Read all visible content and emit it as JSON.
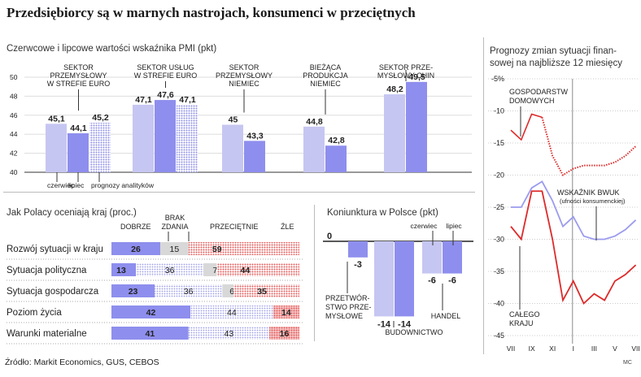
{
  "title": "Przedsiębiorcy są w marnych nastrojach, konsumenci w przeciętnych",
  "source": "Źródło: Markit Economics, GUS, CEBOS",
  "credit": "MC",
  "colors": {
    "czerwiec": "#c6c6f2",
    "lipiec": "#8e8eee",
    "prognozy": "#b8b8f5",
    "dobrze": "#8e8eee",
    "brak": "#d8d8d8",
    "przecietnie": "#ddddf7",
    "zle": "#ee8a8a",
    "red_line": "#dd2a2a",
    "blue_line": "#9b9bee"
  },
  "chart_data": [
    {
      "id": "pmi",
      "type": "bar",
      "title": "Czerwcowe i lipcowe wartości wskaźnika PMI (pkt)",
      "ylim": [
        40,
        50
      ],
      "yticks": [
        "40",
        "42",
        "44",
        "46",
        "48",
        "50"
      ],
      "groups": [
        {
          "label": "SEKTOR PRZEMYSŁOWY W STREFIE EURO",
          "label_lines": [
            "SEKTOR",
            "PRZEMYSŁOWY",
            "W STREFIE EURO"
          ],
          "czerwiec": 45.1,
          "lipiec": 44.1,
          "prognozy": 45.2,
          "labels": [
            "45,1",
            "44,1",
            "45,2"
          ]
        },
        {
          "label": "SEKTOR USŁUG W STREFIE EURO",
          "label_lines": [
            "SEKTOR USŁUG",
            "W STREFIE EURO"
          ],
          "czerwiec": 47.1,
          "lipiec": 47.6,
          "prognozy": 47.1,
          "labels": [
            "47,1",
            "47,6",
            "47,1"
          ]
        },
        {
          "label": "SEKTOR PRZEMYSŁOWY NIEMIEC",
          "label_lines": [
            "SEKTOR",
            "PRZEMYSŁOWY",
            "NIEMIEC"
          ],
          "czerwiec": 45,
          "lipiec": 43.3,
          "labels": [
            "45",
            "43,3"
          ]
        },
        {
          "label": "BIEŻĄCA PRODUKCJA NIEMIEC",
          "label_lines": [
            "BIEŻĄCA",
            "PRODUKCJA",
            "NIEMIEC"
          ],
          "czerwiec": 44.8,
          "lipiec": 42.8,
          "labels": [
            "44,8",
            "42,8"
          ]
        },
        {
          "label": "SEKTOR PRZEMYSŁOWY CHIN",
          "label_lines": [
            "SEKTOR PRZE-",
            "MYSŁOWY CHIN"
          ],
          "czerwiec": 48.2,
          "lipiec": 49.5,
          "labels": [
            "48,2",
            "49,5"
          ]
        }
      ],
      "legend": [
        "czerwiec",
        "lipiec",
        "prognozy analityków"
      ]
    },
    {
      "id": "oceny",
      "type": "bar",
      "stacked": true,
      "orientation": "horizontal",
      "title": "Jak Polacy oceniają kraj (proc.)",
      "categories_header": [
        "DOBRZE",
        "BRAK ZDANIA",
        "PRZECIĘTNIE",
        "ŹLE"
      ],
      "rows": [
        {
          "label": "Rozwój sytuacji w kraju",
          "dobrze": 26,
          "brak": 15,
          "przecietnie": 0,
          "zle": 59,
          "labels": [
            "26",
            "15",
            "",
            "59"
          ]
        },
        {
          "label": "Sytuacja polityczna",
          "dobrze": 13,
          "brak": 0,
          "przecietnie": 36,
          "brak2": 7,
          "zle": 44,
          "labels": [
            "13",
            "36",
            "7",
            "44"
          ]
        },
        {
          "label": "Sytuacja gospodarcza",
          "dobrze": 23,
          "brak": 0,
          "przecietnie": 36,
          "brak2": 6,
          "zle": 35,
          "labels": [
            "23",
            "36",
            "6",
            "35"
          ]
        },
        {
          "label": "Poziom życia",
          "dobrze": 42,
          "brak": 0,
          "przecietnie": 44,
          "zle": 14,
          "labels": [
            "42",
            "",
            "44",
            "14"
          ]
        },
        {
          "label": "Warunki materialne",
          "dobrze": 41,
          "brak": 0,
          "przecietnie": 43,
          "zle": 16,
          "labels": [
            "41",
            "",
            "43",
            "16"
          ]
        }
      ]
    },
    {
      "id": "koniunktura",
      "type": "bar",
      "title": "Koniunktura w Polsce (pkt)",
      "ylim": [
        -16,
        0
      ],
      "legend": [
        "czerwiec",
        "lipiec"
      ],
      "groups": [
        {
          "label": "PRZETWÓRSTWO PRZEMYSŁOWE",
          "label_lines": [
            "PRZETWÓR-",
            "STWO PRZE-",
            "MYSŁOWE"
          ],
          "czerwiec": 0,
          "lipiec": -3,
          "labels": [
            "0",
            "-3"
          ]
        },
        {
          "label": "BUDOWNICTWO",
          "label_lines": [
            "BUDOWNICTWO"
          ],
          "czerwiec": -14,
          "lipiec": -14,
          "labels": [
            "-14",
            "-14"
          ]
        },
        {
          "label": "HANDEL",
          "label_lines": [
            "HANDEL"
          ],
          "czerwiec": -6,
          "lipiec": -6,
          "labels": [
            "-6",
            "-6"
          ]
        }
      ]
    },
    {
      "id": "prognozy",
      "type": "line",
      "title": "Prognozy zmian sytuacji finansowej na najbliższe 12 miesięcy",
      "title_lines": [
        "Prognozy zmian sytuacji finan-",
        "sowej na najbliższe 12 miesięcy"
      ],
      "ylim": [
        -45,
        -5
      ],
      "yticks": [
        "-5%",
        "-10",
        "-15",
        "-20",
        "-25",
        "-30",
        "-35",
        "-40",
        "-45"
      ],
      "xticks": [
        "VII",
        "IX",
        "XI",
        "I",
        "III",
        "V",
        "VII"
      ],
      "x": [
        "VII",
        "VIII",
        "IX",
        "X",
        "XI",
        "XII",
        "I",
        "II",
        "III",
        "IV",
        "V",
        "VI",
        "VII"
      ],
      "series": [
        {
          "name": "GOSPODARSTW DOMOWYCH",
          "color": "red",
          "values": [
            -13,
            -14.5,
            -10.5,
            -11,
            -17,
            -20,
            -19,
            -18.5,
            -18.5,
            -18.5,
            -18,
            -17,
            -15.5
          ],
          "dotted_from": 3
        },
        {
          "name": "WSKAŹNIK BWUK",
          "subname": "(ufności konsumenckiej)",
          "color": "blue",
          "values": [
            -25,
            -25,
            -22,
            -21,
            -24,
            -28,
            -26.5,
            -29.5,
            -30,
            -30,
            -29.5,
            -28.5,
            -27
          ]
        },
        {
          "name": "CAŁEGO KRAJU",
          "color": "red",
          "values": [
            -28,
            -30,
            -22.5,
            -22.5,
            -30,
            -39.5,
            -36.5,
            -40,
            -38.5,
            -39.5,
            -36.5,
            -35.5,
            -34
          ]
        }
      ],
      "annotations": [
        "GOSPODARSTW DOMOWYCH",
        "WSKAŹNIK BWUK",
        "(ufności konsumenckiej)",
        "CAŁEGO KRAJU"
      ]
    }
  ]
}
